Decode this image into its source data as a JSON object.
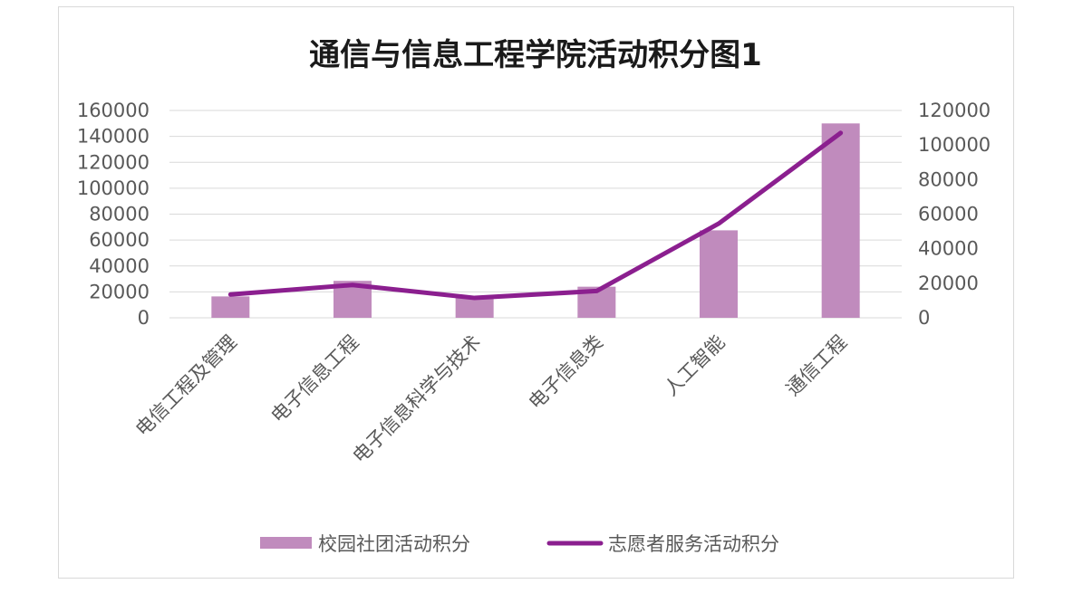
{
  "chart_data": {
    "type": "bar",
    "title": "通信与信息工程学院活动积分图1",
    "categories": [
      "电信工程及管理",
      "电子信息工程",
      "电子信息科学与技术",
      "电子信息类",
      "人工智能",
      "通信工程"
    ],
    "series": [
      {
        "name": "校园社团活动积分",
        "type": "bar",
        "axis": "left",
        "color": "#c08bbd",
        "values": [
          16500,
          28500,
          16500,
          24000,
          67500,
          150000
        ]
      },
      {
        "name": "志愿者服务活动积分",
        "type": "line",
        "axis": "right",
        "color": "#8b1f8f",
        "values": [
          13500,
          19000,
          11500,
          15500,
          54500,
          107000
        ]
      }
    ],
    "y_left": {
      "ylim": [
        0,
        160000
      ],
      "ticks": [
        "160000",
        "140000",
        "120000",
        "100000",
        "80000",
        "60000",
        "40000",
        "20000",
        "0"
      ]
    },
    "y_right": {
      "ylim": [
        0,
        120000
      ],
      "ticks": [
        "120000",
        "100000",
        "80000",
        "60000",
        "40000",
        "20000",
        "0"
      ]
    },
    "grid": true,
    "legend_position": "bottom"
  }
}
